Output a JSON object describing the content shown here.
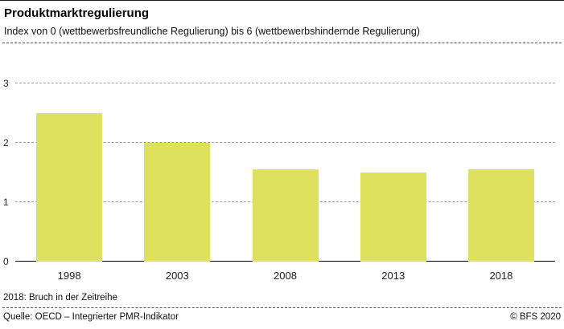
{
  "header": {
    "title": "Produktmarktregulierung",
    "subtitle": "Index von 0 (wettbewerbsfreundliche Regulierung) bis 6 (wettbewerbshindernde Regulierung)"
  },
  "note": "2018: Bruch in der Zeitreihe",
  "footer": {
    "source": "Quelle: OECD – Integrierter PMR-Indikator",
    "copyright": "© BFS 2020"
  },
  "chart_data": {
    "type": "bar",
    "title": "Produktmarktregulierung",
    "categories": [
      "1998",
      "2003",
      "2008",
      "2013",
      "2018"
    ],
    "values": [
      2.5,
      2.0,
      1.55,
      1.5,
      1.55
    ],
    "xlabel": "",
    "ylabel": "",
    "ylim": [
      0,
      3
    ],
    "yticks": [
      0,
      1,
      2,
      3
    ],
    "bar_color": "#dde15e",
    "grid": "horizontal-dashed",
    "legend": "none"
  }
}
